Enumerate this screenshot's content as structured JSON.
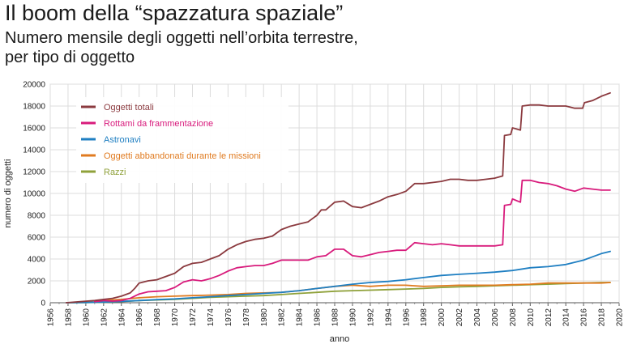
{
  "title": "Il boom della “spazzatura spaziale”",
  "subtitle_line1": "Numero mensile degli oggetti nell’orbita terrestre,",
  "subtitle_line2": "per tipo di oggetto",
  "chart_data": {
    "type": "line",
    "xlabel": "anno",
    "ylabel": "numero di oggetti",
    "xlim": [
      1956,
      2020
    ],
    "ylim": [
      0,
      20000
    ],
    "xticks": [
      "1956",
      "1958",
      "1960",
      "1962",
      "1964",
      "1966",
      "1968",
      "1970",
      "1972",
      "1974",
      "1976",
      "1978",
      "1980",
      "1982",
      "1984",
      "1986",
      "1988",
      "1990",
      "1992",
      "1994",
      "1996",
      "1998",
      "2000",
      "2002",
      "2004",
      "2006",
      "2008",
      "2010",
      "2012",
      "2014",
      "2016",
      "2018",
      "2020"
    ],
    "yticks": [
      "0",
      "2000",
      "4000",
      "6000",
      "8000",
      "10000",
      "12000",
      "14000",
      "16000",
      "18000",
      "20000"
    ],
    "grid": true,
    "legend_position": "top-left",
    "series": [
      {
        "name": "Oggetti totali",
        "color": "#8b3a3f",
        "x": [
          1957.8,
          1961,
          1962,
          1963,
          1964,
          1965,
          1965.5,
          1966,
          1967,
          1968,
          1969,
          1970,
          1971,
          1972,
          1973,
          1974,
          1975,
          1976,
          1977,
          1978,
          1979,
          1980,
          1981,
          1982,
          1983,
          1984,
          1985,
          1986,
          1986.5,
          1987,
          1988,
          1989,
          1990,
          1991,
          1992,
          1993,
          1994,
          1995,
          1996,
          1997,
          1998,
          1999,
          2000,
          2001,
          2002,
          2003,
          2004,
          2005,
          2006,
          2006.9,
          2007.1,
          2007.8,
          2008,
          2008.9,
          2009.1,
          2010,
          2011,
          2012,
          2013,
          2014,
          2015,
          2015.9,
          2016.1,
          2017,
          2018,
          2019
        ],
        "y": [
          0,
          200,
          300,
          400,
          600,
          900,
          1300,
          1800,
          2000,
          2100,
          2400,
          2700,
          3300,
          3600,
          3700,
          4000,
          4300,
          4900,
          5300,
          5600,
          5800,
          5900,
          6100,
          6700,
          7000,
          7200,
          7400,
          8000,
          8500,
          8500,
          9200,
          9300,
          8800,
          8700,
          9000,
          9300,
          9700,
          9900,
          10200,
          10900,
          10900,
          11000,
          11100,
          11300,
          11300,
          11200,
          11200,
          11300,
          11400,
          11600,
          15300,
          15400,
          16000,
          15800,
          18000,
          18100,
          18100,
          18000,
          18000,
          18000,
          17800,
          17800,
          18300,
          18500,
          18900,
          19200
        ]
      },
      {
        "name": "Rottami da frammentazione",
        "color": "#d81b7c",
        "x": [
          1961,
          1962,
          1963,
          1964,
          1965,
          1966,
          1967,
          1968,
          1969,
          1970,
          1971,
          1972,
          1973,
          1974,
          1975,
          1976,
          1977,
          1978,
          1979,
          1980,
          1981,
          1982,
          1983,
          1984,
          1985,
          1986,
          1987,
          1988,
          1989,
          1990,
          1991,
          1992,
          1993,
          1994,
          1995,
          1996,
          1997,
          1998,
          1999,
          2000,
          2001,
          2002,
          2003,
          2004,
          2005,
          2006,
          2006.9,
          2007.1,
          2007.8,
          2008,
          2008.9,
          2009.1,
          2010,
          2011,
          2012,
          2013,
          2014,
          2015,
          2016,
          2017,
          2018,
          2019
        ],
        "y": [
          100,
          200,
          150,
          200,
          400,
          800,
          1000,
          1050,
          1100,
          1400,
          1900,
          2100,
          2000,
          2200,
          2500,
          2900,
          3200,
          3300,
          3400,
          3400,
          3600,
          3900,
          3900,
          3900,
          3900,
          4200,
          4300,
          4900,
          4900,
          4300,
          4200,
          4400,
          4600,
          4700,
          4800,
          4800,
          5500,
          5400,
          5300,
          5400,
          5300,
          5200,
          5200,
          5200,
          5200,
          5200,
          5300,
          8900,
          9000,
          9500,
          9200,
          11200,
          11200,
          11000,
          10900,
          10700,
          10400,
          10200,
          10500,
          10400,
          10300,
          10300
        ]
      },
      {
        "name": "Astronavi",
        "color": "#1f7fc2",
        "x": [
          1957.8,
          1960,
          1962,
          1964,
          1966,
          1968,
          1970,
          1972,
          1974,
          1976,
          1978,
          1980,
          1982,
          1984,
          1986,
          1988,
          1990,
          1992,
          1994,
          1996,
          1998,
          2000,
          2002,
          2004,
          2006,
          2008,
          2010,
          2012,
          2014,
          2016,
          2017,
          2018,
          2019
        ],
        "y": [
          0,
          20,
          60,
          120,
          200,
          280,
          350,
          450,
          550,
          650,
          750,
          850,
          950,
          1100,
          1300,
          1500,
          1700,
          1850,
          1950,
          2100,
          2300,
          2500,
          2600,
          2700,
          2800,
          2950,
          3200,
          3300,
          3500,
          3900,
          4200,
          4500,
          4700
        ]
      },
      {
        "name": "Oggetti abbandonati durante le missioni",
        "color": "#e07b20",
        "x": [
          1961,
          1962,
          1964,
          1966,
          1968,
          1970,
          1972,
          1974,
          1976,
          1978,
          1980,
          1982,
          1984,
          1986,
          1988,
          1990,
          1992,
          1994,
          1996,
          1998,
          2000,
          2002,
          2004,
          2006,
          2008,
          2010,
          2012,
          2014,
          2016,
          2018,
          2019
        ],
        "y": [
          100,
          200,
          300,
          450,
          550,
          600,
          650,
          700,
          750,
          850,
          900,
          950,
          1100,
          1300,
          1500,
          1600,
          1500,
          1600,
          1600,
          1500,
          1550,
          1600,
          1600,
          1600,
          1650,
          1700,
          1800,
          1800,
          1800,
          1800,
          1850
        ]
      },
      {
        "name": "Razzi",
        "color": "#8fa13a",
        "x": [
          1957.8,
          1960,
          1962,
          1964,
          1966,
          1968,
          1970,
          1972,
          1974,
          1976,
          1978,
          1980,
          1982,
          1984,
          1986,
          1988,
          1990,
          1992,
          1994,
          1996,
          1998,
          2000,
          2002,
          2004,
          2006,
          2008,
          2010,
          2012,
          2014,
          2016,
          2018,
          2019
        ],
        "y": [
          0,
          10,
          50,
          100,
          200,
          250,
          300,
          400,
          500,
          550,
          600,
          650,
          750,
          850,
          950,
          1050,
          1100,
          1150,
          1200,
          1250,
          1300,
          1400,
          1450,
          1500,
          1550,
          1600,
          1650,
          1700,
          1750,
          1800,
          1850,
          1850
        ]
      }
    ]
  }
}
